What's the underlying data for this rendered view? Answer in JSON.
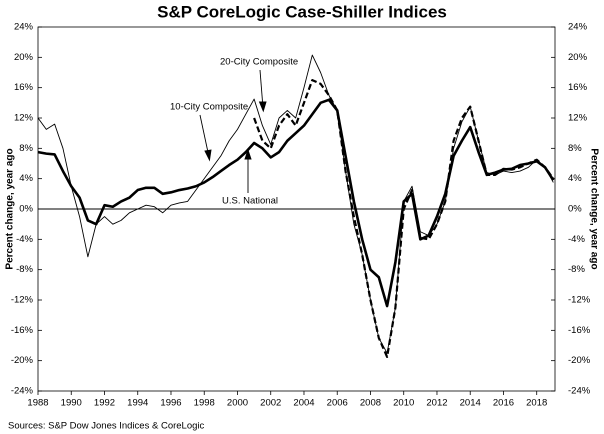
{
  "chart_data": {
    "type": "line",
    "title": "S&P CoreLogic Case-Shiller Indices",
    "y_label": "Percent change, year ago",
    "y2_label": "Percent change, year ago",
    "source": "Sources: S&P Dow Jones Indices & CoreLogic",
    "annotations": [
      "20-City Composite",
      "10-City Composite",
      "U.S. National"
    ],
    "x": [
      1988,
      1988.5,
      1989,
      1989.5,
      1990,
      1990.5,
      1991,
      1991.5,
      1992,
      1992.5,
      1993,
      1993.5,
      1994,
      1994.5,
      1995,
      1995.5,
      1996,
      1996.5,
      1997,
      1997.5,
      1998,
      1998.5,
      1999,
      1999.5,
      2000,
      2000.5,
      2001,
      2001.5,
      2002,
      2002.5,
      2003,
      2003.5,
      2004,
      2004.5,
      2005,
      2005.5,
      2006,
      2006.5,
      2007,
      2007.5,
      2008,
      2008.5,
      2009,
      2009.5,
      2010,
      2010.5,
      2011,
      2011.5,
      2012,
      2012.5,
      2013,
      2013.5,
      2014,
      2014.5,
      2015,
      2015.5,
      2016,
      2016.5,
      2017,
      2017.5,
      2018,
      2018.5,
      2019
    ],
    "xlim": [
      1988,
      2019.1
    ],
    "xticks": [
      1988,
      1990,
      1992,
      1994,
      1996,
      1998,
      2000,
      2002,
      2004,
      2006,
      2008,
      2010,
      2012,
      2014,
      2016,
      2018
    ],
    "ylim": [
      -24,
      24
    ],
    "yticks": [
      {
        "value": -24,
        "label": "-24%"
      },
      {
        "value": -20,
        "label": "-20%"
      },
      {
        "value": -16,
        "label": "-16%"
      },
      {
        "value": -12,
        "label": "-12%"
      },
      {
        "value": -8,
        "label": "-8%"
      },
      {
        "value": -4,
        "label": "-4%"
      },
      {
        "value": 0,
        "label": "0%"
      },
      {
        "value": 4,
        "label": "4%"
      },
      {
        "value": 8,
        "label": "8%"
      },
      {
        "value": 12,
        "label": "12%"
      },
      {
        "value": 16,
        "label": "16%"
      },
      {
        "value": 20,
        "label": "20%"
      },
      {
        "value": 24,
        "label": "24%"
      }
    ],
    "y2lim": [
      -24,
      24
    ],
    "y2ticks": [
      {
        "value": -24,
        "label": "-24%"
      },
      {
        "value": -20,
        "label": "-20%"
      },
      {
        "value": -16,
        "label": "-16%"
      },
      {
        "value": -12,
        "label": "-12%"
      },
      {
        "value": -8,
        "label": "-8%"
      },
      {
        "value": -4,
        "label": "-4%"
      },
      {
        "value": 0,
        "label": "0%"
      },
      {
        "value": 4,
        "label": "4%"
      },
      {
        "value": 8,
        "label": "8%"
      },
      {
        "value": 12,
        "label": "12%"
      },
      {
        "value": 16,
        "label": "16%"
      },
      {
        "value": 20,
        "label": "20%"
      },
      {
        "value": 24,
        "label": "24%"
      }
    ],
    "series": [
      {
        "name": "U.S. National",
        "color": "#000000",
        "width": 2.6,
        "dash": "solid",
        "values": [
          7.5,
          7.3,
          7.2,
          5,
          3,
          1.5,
          -1.5,
          -2,
          0.5,
          0.3,
          1,
          1.5,
          2.5,
          2.8,
          2.8,
          2,
          2.2,
          2.5,
          2.7,
          3,
          3.5,
          4.2,
          5,
          5.8,
          6.5,
          7.5,
          8.7,
          8,
          6.8,
          7.5,
          9,
          10,
          11,
          12.5,
          14,
          14.4,
          13,
          7,
          1,
          -4,
          -8,
          -9,
          -12.8,
          -7,
          1,
          2,
          -4,
          -3.5,
          -1,
          2,
          7,
          9,
          10.8,
          7.5,
          4.5,
          4.8,
          5.2,
          5.3,
          5.8,
          6,
          6.3,
          5.5,
          3.8
        ]
      },
      {
        "name": "10-City Composite",
        "color": "#000000",
        "width": 0.9,
        "dash": "solid",
        "values": [
          12,
          10.5,
          11.2,
          8,
          3,
          -1,
          -6.3,
          -2,
          -1,
          -2,
          -1.5,
          -0.5,
          0,
          0.5,
          0.3,
          -0.5,
          0.5,
          0.8,
          1,
          2.5,
          4,
          5.5,
          7,
          9,
          10.5,
          12.5,
          14.5,
          11,
          8.5,
          12,
          13,
          12,
          16,
          20.3,
          18,
          15,
          13,
          5,
          -2,
          -6,
          -12,
          -17,
          -19,
          -13,
          1,
          3,
          -3,
          -3.5,
          -2,
          1,
          8,
          11.5,
          13.5,
          9,
          4.8,
          4.5,
          5,
          4.8,
          5,
          5.5,
          6.5,
          5.5,
          3.5
        ]
      },
      {
        "name": "20-City Composite",
        "color": "#000000",
        "width": 2.2,
        "dash": "dashed",
        "values": [
          null,
          null,
          null,
          null,
          null,
          null,
          null,
          null,
          null,
          null,
          null,
          null,
          null,
          null,
          null,
          null,
          null,
          null,
          null,
          null,
          null,
          null,
          null,
          null,
          null,
          null,
          12,
          9,
          8,
          11,
          12.5,
          11,
          14,
          17,
          16.5,
          15,
          13,
          5,
          -1,
          -6,
          -12,
          -17,
          -19.5,
          -13,
          0,
          2.5,
          -3.8,
          -4,
          -2,
          1,
          9,
          12,
          13.5,
          9,
          4.5,
          4.5,
          5.3,
          5.2,
          5.5,
          6,
          6.5,
          5.5,
          4
        ]
      }
    ]
  }
}
